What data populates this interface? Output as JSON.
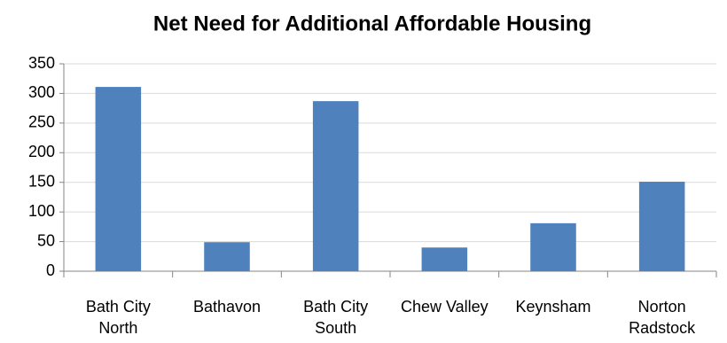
{
  "chart_data": {
    "type": "bar",
    "title": "Net Need for Additional Affordable Housing",
    "categories": [
      "Bath City North",
      "Bathavon",
      "Bath City South",
      "Chew Valley",
      "Keynsham",
      "Norton Radstock"
    ],
    "values": [
      311,
      49,
      287,
      40,
      81,
      151
    ],
    "color": "#4f81bd",
    "ylim": [
      0,
      350
    ],
    "yticks": [
      0,
      50,
      100,
      150,
      200,
      250,
      300,
      350
    ],
    "grid": true
  }
}
